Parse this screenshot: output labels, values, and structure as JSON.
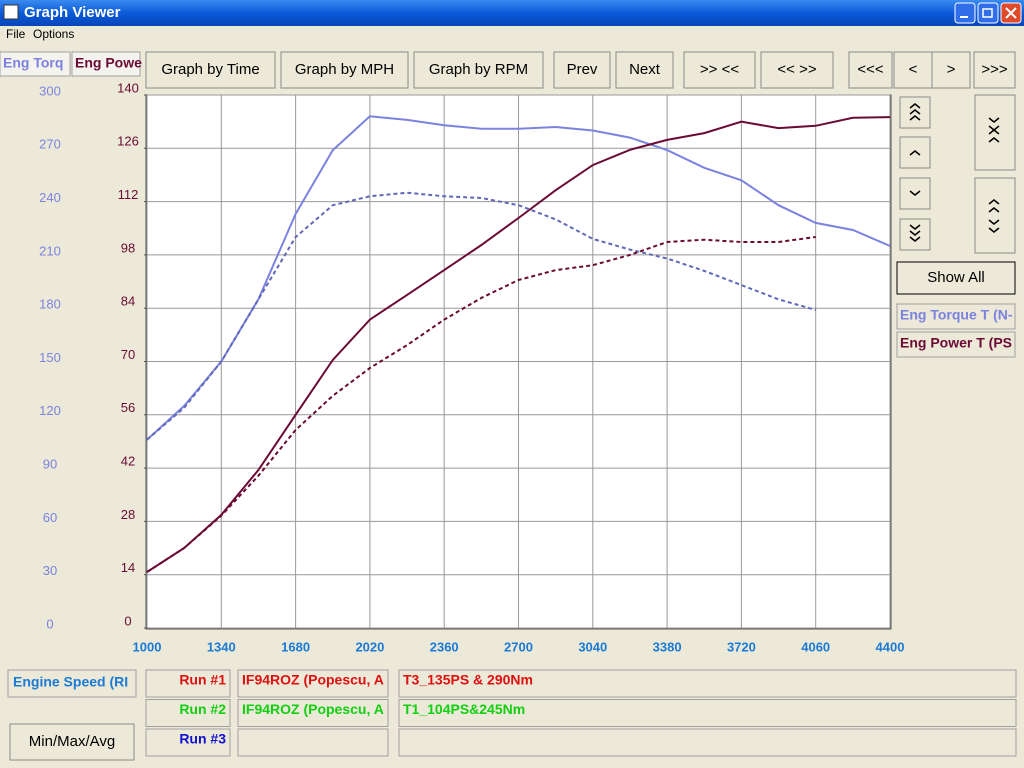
{
  "window": {
    "title": "Graph Viewer"
  },
  "menu": [
    "File",
    "Options"
  ],
  "toolbar": [
    "Graph by Time",
    "Graph by MPH",
    "Graph by RPM",
    "Prev",
    "Next",
    ">> <<",
    "<< >>",
    "<<<",
    "<",
    ">",
    ">>>"
  ],
  "side": {
    "show_all": "Show All"
  },
  "runs": [
    {
      "label": "Run #1",
      "color": "#e01010",
      "vehicle": "IF94ROZ (Popescu, A",
      "description": "T3_135PS & 290Nm"
    },
    {
      "label": "Run #2",
      "color": "#10d010",
      "vehicle": "IF94ROZ (Popescu, A",
      "description": "T1_104PS&245Nm"
    },
    {
      "label": "Run #3",
      "color": "#1010d0"
    }
  ],
  "footer": {
    "button": "Min/Max/Avg"
  },
  "chart_data": {
    "type": "line",
    "x_label": "Engine Speed (RI",
    "y_label": "Eng Torq",
    "y2_label": "Eng Powe",
    "x": [
      1000,
      1170,
      1340,
      1510,
      1680,
      1850,
      2020,
      2190,
      2360,
      2530,
      2700,
      2870,
      3040,
      3210,
      3380,
      3550,
      3720,
      3890,
      4060,
      4230,
      4400
    ],
    "xlim": [
      1000,
      4400
    ],
    "xticks": [
      1000,
      1340,
      1680,
      2020,
      2360,
      2700,
      3040,
      3380,
      3720,
      4060,
      4400
    ],
    "ylim": [
      0,
      300
    ],
    "yticks": [
      0,
      30,
      60,
      90,
      120,
      150,
      180,
      210,
      240,
      270,
      300
    ],
    "y2lim": [
      0,
      140
    ],
    "y2ticks": [
      0,
      14,
      28,
      42,
      56,
      70,
      84,
      98,
      112,
      126,
      140
    ],
    "grid": true,
    "y_color": "#7b82e0",
    "y2_color": "#6a0a35",
    "x_color": "#1a7ad6",
    "series": [
      {
        "name": "Eng Torque T (N-",
        "color": "#7b82e0",
        "dashed": false,
        "values": [
          106,
          125,
          150,
          185,
          233,
          269,
          288,
          286,
          283,
          281,
          281,
          282,
          280,
          276,
          269,
          259,
          252,
          238,
          228,
          224,
          215
        ]
      },
      {
        "name": "Eng Power T (PS",
        "color": "#6a0a35",
        "dashed": false,
        "axis": "y2",
        "values": [
          14.7,
          21,
          29.7,
          41.5,
          56,
          70.4,
          81,
          87.5,
          94,
          100.6,
          107.7,
          115,
          121.6,
          125.6,
          128.2,
          130,
          133,
          131.3,
          131.9,
          134,
          134.2
        ]
      },
      {
        "name": "Eng Torque T (N-",
        "color": "#6068b8",
        "dashed": true,
        "values": [
          106,
          124,
          150,
          185,
          220,
          238,
          243,
          245,
          243,
          242,
          238,
          230,
          219,
          213,
          208,
          201,
          193,
          185,
          179,
          null,
          null
        ]
      },
      {
        "name": "Eng Power T (PS",
        "color": "#6a0a35",
        "dashed": true,
        "axis": "y2",
        "values": [
          14.7,
          21,
          29.5,
          40,
          52,
          61,
          68.3,
          74.3,
          81,
          86.7,
          91.4,
          94,
          95.3,
          98,
          101.4,
          102,
          101.4,
          101.4,
          102.7,
          null,
          null
        ]
      }
    ]
  }
}
